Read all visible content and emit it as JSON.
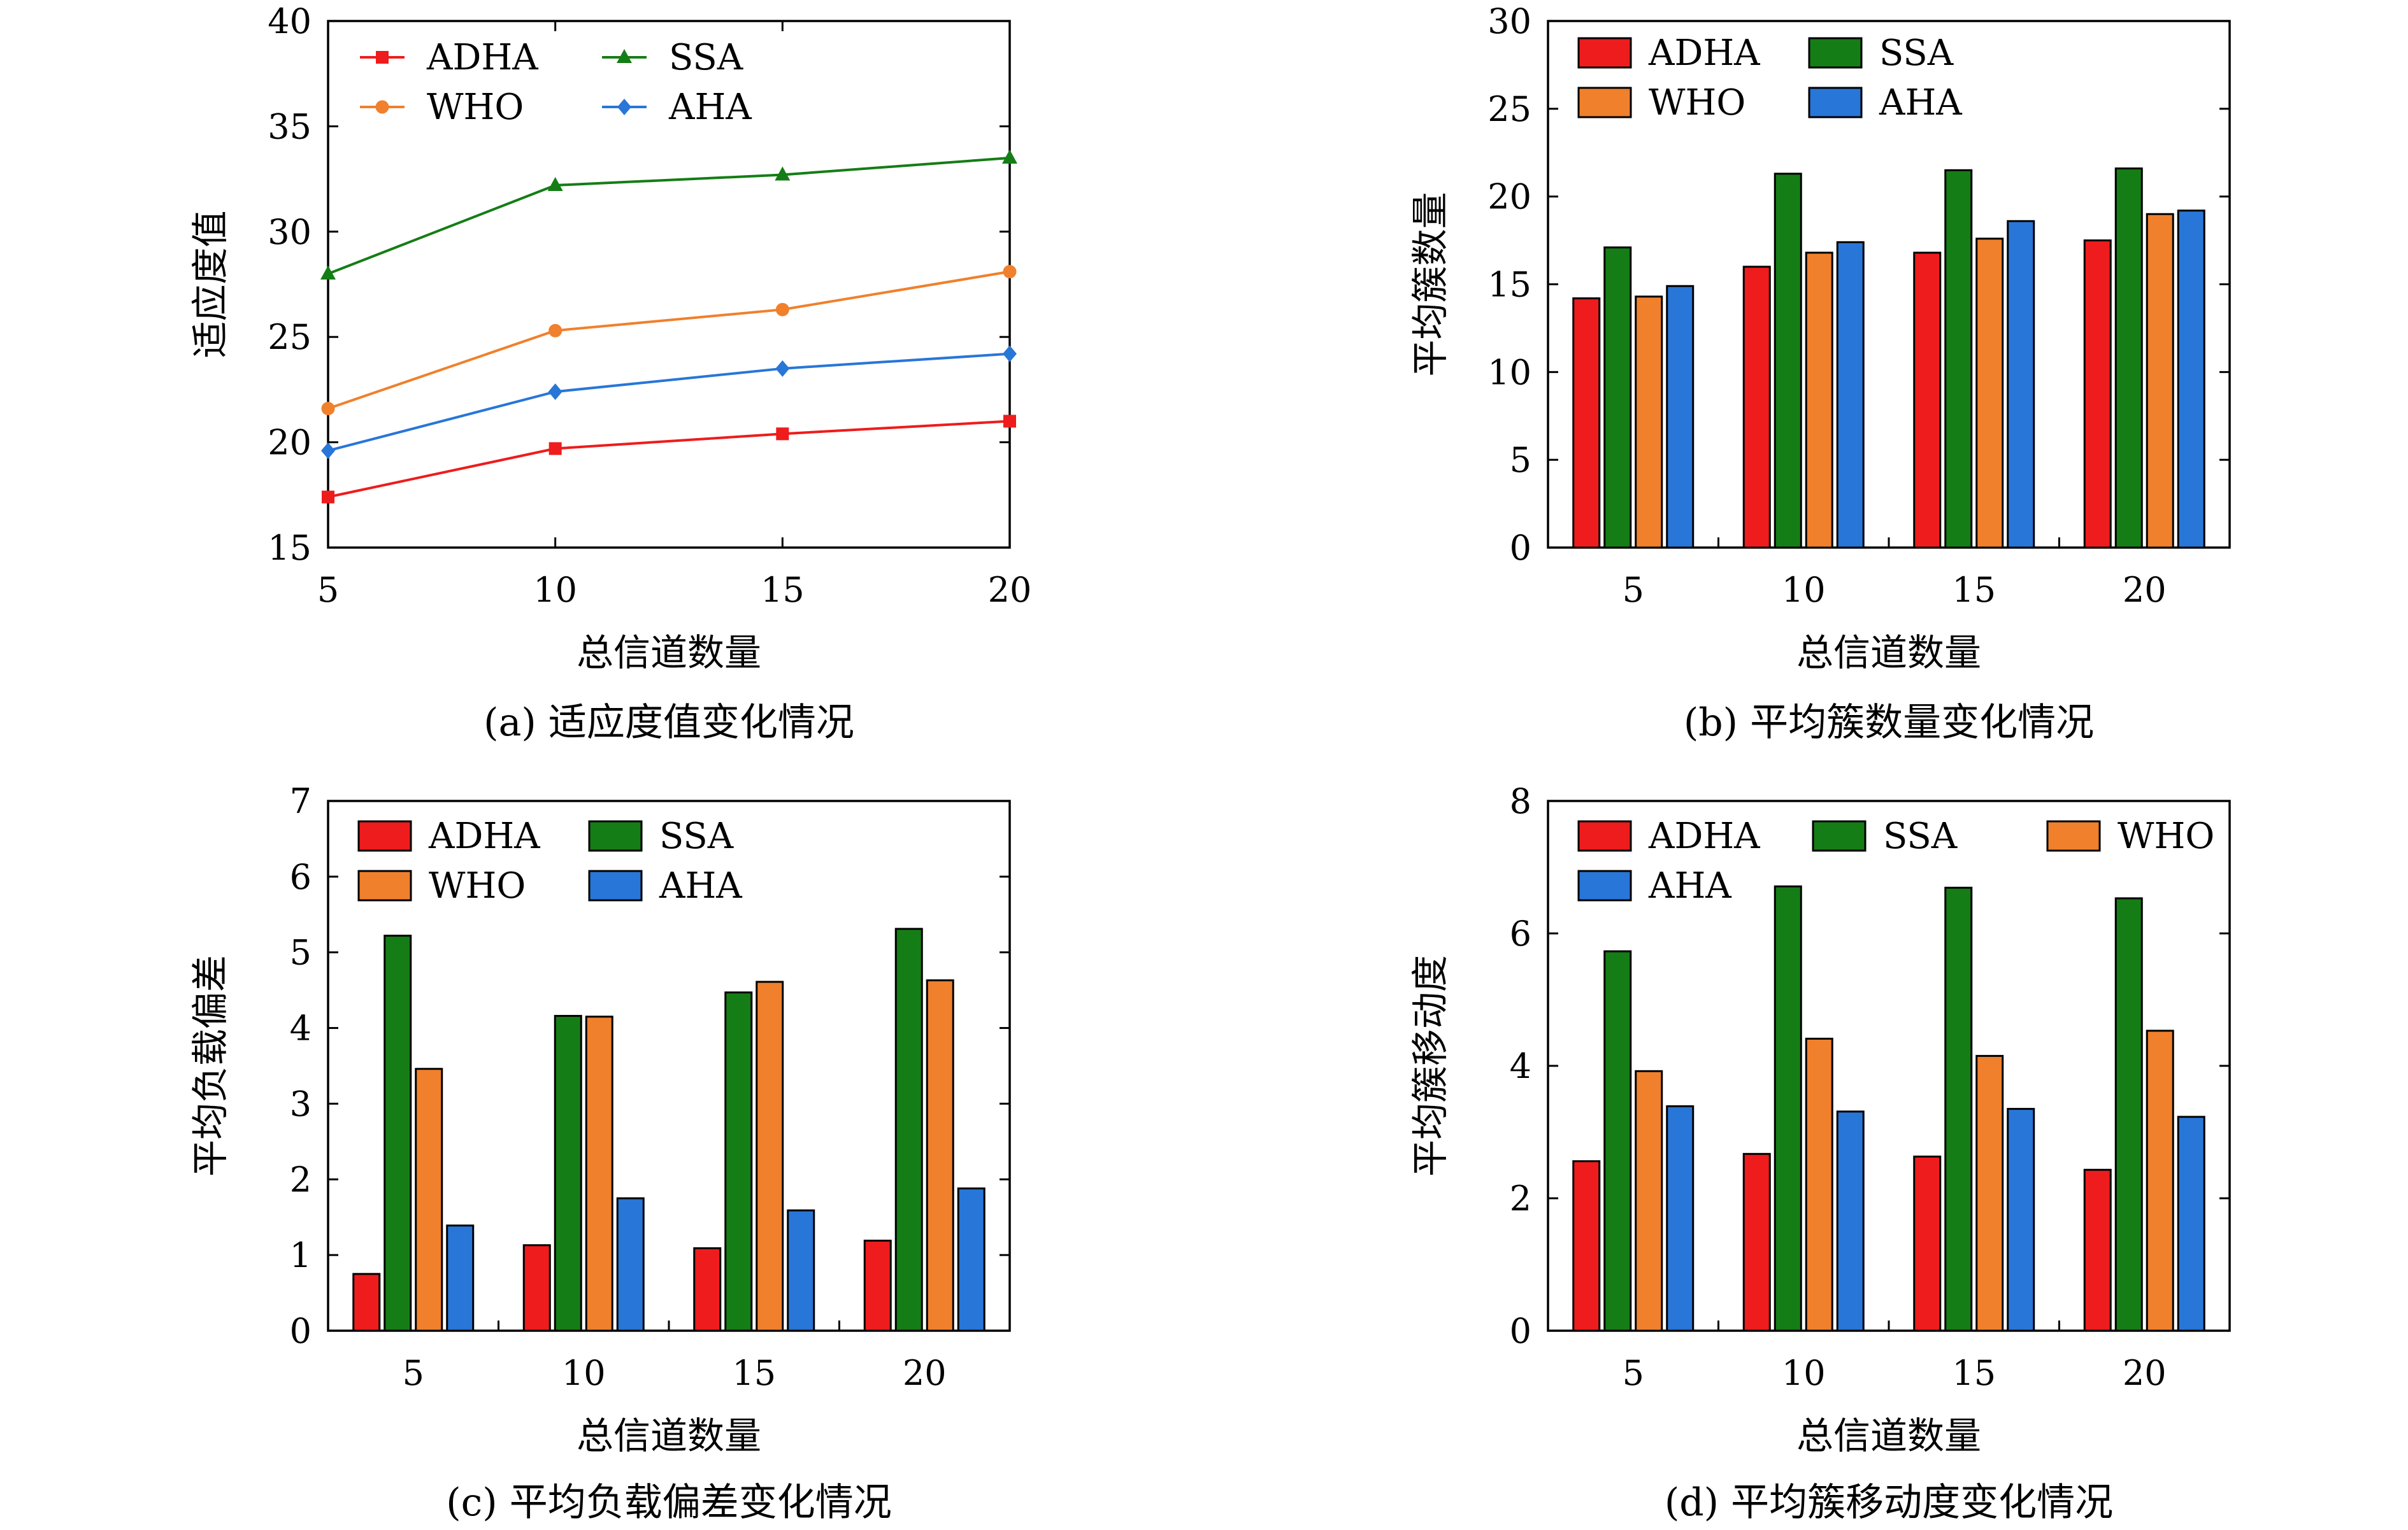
{
  "colors": {
    "ADHA": "#ee1c1c",
    "SSA": "#157d15",
    "WHO": "#f0802c",
    "AHA": "#2876d8"
  },
  "chart_data": [
    {
      "id": "a",
      "type": "line",
      "x": [
        5,
        10,
        15,
        20
      ],
      "xlim": [
        5,
        20
      ],
      "ylim": [
        15,
        40
      ],
      "yticks": [
        15,
        20,
        25,
        30,
        35,
        40
      ],
      "xlabel": "总信道数量",
      "ylabel": "适应度值",
      "caption": "(a) 适应度值变化情况",
      "legend": "top-left",
      "grid": false,
      "series": [
        {
          "name": "ADHA",
          "marker": "square",
          "values": [
            17.4,
            19.7,
            20.4,
            21.0
          ]
        },
        {
          "name": "WHO",
          "marker": "circle",
          "values": [
            21.6,
            25.3,
            26.3,
            28.1
          ]
        },
        {
          "name": "SSA",
          "marker": "triangle",
          "values": [
            28.0,
            32.2,
            32.7,
            33.5
          ]
        },
        {
          "name": "AHA",
          "marker": "diamond",
          "values": [
            19.6,
            22.4,
            23.5,
            24.2
          ]
        }
      ]
    },
    {
      "id": "b",
      "type": "bar",
      "categories": [
        "5",
        "10",
        "15",
        "20"
      ],
      "ylim": [
        0,
        30
      ],
      "yticks": [
        0,
        5,
        10,
        15,
        20,
        25,
        30
      ],
      "xlabel": "总信道数量",
      "ylabel": "平均簇数量",
      "caption": "(b) 平均簇数量变化情况",
      "legend": "top-left",
      "grid": false,
      "series": [
        {
          "name": "ADHA",
          "values": [
            14.2,
            16.0,
            16.8,
            17.5
          ]
        },
        {
          "name": "SSA",
          "values": [
            17.1,
            21.3,
            21.5,
            21.6
          ]
        },
        {
          "name": "WHO",
          "values": [
            14.3,
            16.8,
            17.6,
            19.0
          ]
        },
        {
          "name": "AHA",
          "values": [
            14.9,
            17.4,
            18.6,
            19.2
          ]
        }
      ]
    },
    {
      "id": "c",
      "type": "bar",
      "categories": [
        "5",
        "10",
        "15",
        "20"
      ],
      "ylim": [
        0,
        7
      ],
      "yticks": [
        0,
        1,
        2,
        3,
        4,
        5,
        6,
        7
      ],
      "xlabel": "总信道数量",
      "ylabel": "平均负载偏差",
      "caption": "(c) 平均负载偏差变化情况",
      "legend": "top-left",
      "grid": false,
      "series": [
        {
          "name": "ADHA",
          "values": [
            0.75,
            1.13,
            1.09,
            1.19
          ]
        },
        {
          "name": "SSA",
          "values": [
            5.22,
            4.16,
            4.47,
            5.31
          ]
        },
        {
          "name": "WHO",
          "values": [
            3.46,
            4.15,
            4.61,
            4.63
          ]
        },
        {
          "name": "AHA",
          "values": [
            1.39,
            1.75,
            1.59,
            1.88
          ]
        }
      ]
    },
    {
      "id": "d",
      "type": "bar",
      "categories": [
        "5",
        "10",
        "15",
        "20"
      ],
      "ylim": [
        0,
        8
      ],
      "yticks": [
        0,
        2,
        4,
        6,
        8
      ],
      "xlabel": "总信道数量",
      "ylabel": "平均簇移动度",
      "caption": "(d) 平均簇移动度变化情况",
      "legend": "top-left",
      "grid": false,
      "series": [
        {
          "name": "ADHA",
          "values": [
            2.56,
            2.67,
            2.63,
            2.43
          ]
        },
        {
          "name": "SSA",
          "values": [
            5.73,
            6.71,
            6.69,
            6.53
          ]
        },
        {
          "name": "WHO",
          "values": [
            3.92,
            4.41,
            4.15,
            4.53
          ]
        },
        {
          "name": "AHA",
          "values": [
            3.39,
            3.31,
            3.35,
            3.23
          ]
        }
      ]
    }
  ]
}
